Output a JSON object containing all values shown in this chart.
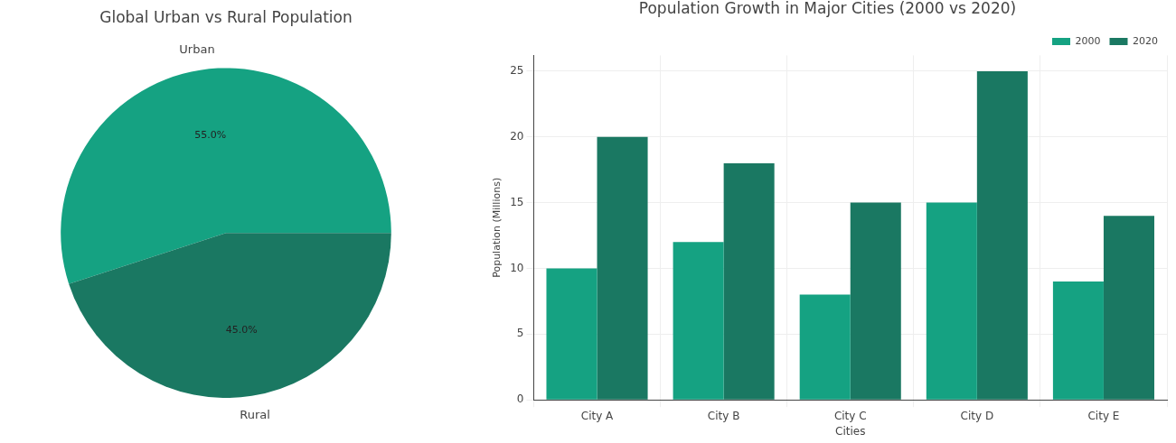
{
  "chart_data": [
    {
      "type": "pie",
      "title": "Global Urban vs Rural Population",
      "categories": [
        "Urban",
        "Rural"
      ],
      "values": [
        55,
        45
      ],
      "colors": [
        "#15a282",
        "#1a7862"
      ],
      "value_labels": [
        "55.0%",
        "45.0%"
      ]
    },
    {
      "type": "bar",
      "title": "Population Growth in Major Cities (2000 vs 2020)",
      "xlabel": "Cities",
      "ylabel": "Population (Millions)",
      "categories": [
        "City A",
        "City B",
        "City C",
        "City D",
        "City E"
      ],
      "series": [
        {
          "name": "2000",
          "color": "#15a282",
          "values": [
            10,
            12,
            8,
            15,
            9
          ]
        },
        {
          "name": "2020",
          "color": "#1a7862",
          "values": [
            20,
            18,
            15,
            25,
            14
          ]
        }
      ],
      "ylim": [
        0,
        26.2
      ],
      "yticks": [
        0,
        5,
        10,
        15,
        20,
        25
      ],
      "grid": true,
      "legend": "top right"
    }
  ]
}
